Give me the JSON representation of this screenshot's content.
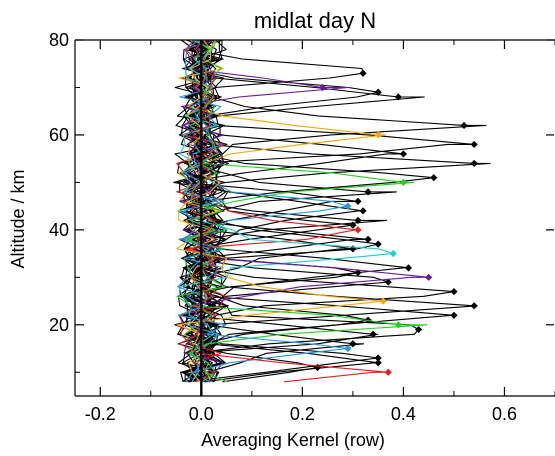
{
  "chart_data": {
    "type": "line",
    "title": "midlat day N",
    "xlabel": "Averaging Kernel (row)",
    "ylabel": "Altitude / km",
    "xlim": [
      -0.25,
      0.7
    ],
    "ylim": [
      5,
      80
    ],
    "xticks": [
      -0.2,
      0.0,
      0.2,
      0.4,
      0.6
    ],
    "xtick_labels": [
      "-0.2",
      "0.0",
      "0.2",
      "0.4",
      "0.6"
    ],
    "yticks": [
      20,
      40,
      60,
      80
    ],
    "ytick_labels": [
      "20",
      "40",
      "60",
      "80"
    ],
    "grid": false,
    "legend": "none",
    "colors": {
      "black": "#000000",
      "purple": "#6a1aa3",
      "orange": "#f5a800",
      "green": "#1fd21f",
      "blue": "#1f9be6",
      "red": "#e61e1e",
      "cyan": "#12d2d6"
    },
    "series": [
      {
        "color": "purple",
        "peak": [
          0.24,
          70.0
        ],
        "row_altitude_km": 70.0
      },
      {
        "color": "orange",
        "peak": [
          0.35,
          60.0
        ],
        "row_altitude_km": 60.0
      },
      {
        "color": "green",
        "peak": [
          0.4,
          50.0
        ],
        "row_altitude_km": 50.0
      },
      {
        "color": "blue",
        "peak": [
          0.29,
          45.0
        ],
        "row_altitude_km": 45.0
      },
      {
        "color": "red",
        "peak": [
          0.31,
          40.0
        ],
        "row_altitude_km": 40.0
      },
      {
        "color": "cyan",
        "peak": [
          0.38,
          35.0
        ],
        "row_altitude_km": 35.0
      },
      {
        "color": "purple",
        "peak": [
          0.45,
          30.0
        ],
        "row_altitude_km": 30.0
      },
      {
        "color": "orange",
        "peak": [
          0.36,
          25.0
        ],
        "row_altitude_km": 25.0
      },
      {
        "color": "green",
        "peak": [
          0.39,
          20.0
        ],
        "row_altitude_km": 20.0
      },
      {
        "color": "blue",
        "peak": [
          0.29,
          15.0
        ],
        "row_altitude_km": 15.0
      },
      {
        "color": "red",
        "peak": [
          0.37,
          10.0
        ],
        "row_altitude_km": 10.0
      },
      {
        "color": "black",
        "peak": [
          0.32,
          73.0
        ],
        "row_altitude_km": 73.0
      },
      {
        "color": "black",
        "peak": [
          0.39,
          68.0
        ],
        "row_altitude_km": 68.0
      },
      {
        "color": "black",
        "peak": [
          0.35,
          69.0
        ],
        "row_altitude_km": 69.0
      },
      {
        "color": "black",
        "peak": [
          0.52,
          62.0
        ],
        "row_altitude_km": 62.0
      },
      {
        "color": "black",
        "peak": [
          0.54,
          58.0
        ],
        "row_altitude_km": 58.0
      },
      {
        "color": "black",
        "peak": [
          0.4,
          56.0
        ],
        "row_altitude_km": 56.0
      },
      {
        "color": "black",
        "peak": [
          0.54,
          54.0
        ],
        "row_altitude_km": 54.0
      },
      {
        "color": "black",
        "peak": [
          0.46,
          51.0
        ],
        "row_altitude_km": 51.0
      },
      {
        "color": "black",
        "peak": [
          0.33,
          48.0
        ],
        "row_altitude_km": 48.0
      },
      {
        "color": "black",
        "peak": [
          0.31,
          46.0
        ],
        "row_altitude_km": 46.0
      },
      {
        "color": "black",
        "peak": [
          0.32,
          44.0
        ],
        "row_altitude_km": 44.0
      },
      {
        "color": "black",
        "peak": [
          0.31,
          42.0
        ],
        "row_altitude_km": 42.0
      },
      {
        "color": "black",
        "peak": [
          0.3,
          41.0
        ],
        "row_altitude_km": 41.0
      },
      {
        "color": "black",
        "peak": [
          0.33,
          38.0
        ],
        "row_altitude_km": 38.0
      },
      {
        "color": "black",
        "peak": [
          0.35,
          37.0
        ],
        "row_altitude_km": 37.0
      },
      {
        "color": "black",
        "peak": [
          0.3,
          36.0
        ],
        "row_altitude_km": 36.0
      },
      {
        "color": "black",
        "peak": [
          0.41,
          32.0
        ],
        "row_altitude_km": 32.0
      },
      {
        "color": "black",
        "peak": [
          0.31,
          31.0
        ],
        "row_altitude_km": 31.0
      },
      {
        "color": "black",
        "peak": [
          0.37,
          29.0
        ],
        "row_altitude_km": 29.0
      },
      {
        "color": "black",
        "peak": [
          0.5,
          27.0
        ],
        "row_altitude_km": 27.0
      },
      {
        "color": "black",
        "peak": [
          0.54,
          24.0
        ],
        "row_altitude_km": 24.0
      },
      {
        "color": "black",
        "peak": [
          0.5,
          22.0
        ],
        "row_altitude_km": 22.0
      },
      {
        "color": "black",
        "peak": [
          0.33,
          21.0
        ],
        "row_altitude_km": 21.0
      },
      {
        "color": "black",
        "peak": [
          0.43,
          19.0
        ],
        "row_altitude_km": 19.0
      },
      {
        "color": "black",
        "peak": [
          0.34,
          18.0
        ],
        "row_altitude_km": 18.0
      },
      {
        "color": "black",
        "peak": [
          0.3,
          16.0
        ],
        "row_altitude_km": 16.0
      },
      {
        "color": "black",
        "peak": [
          0.35,
          13.0
        ],
        "row_altitude_km": 13.0
      },
      {
        "color": "black",
        "peak": [
          0.35,
          12.0
        ],
        "row_altitude_km": 12.0
      },
      {
        "color": "black",
        "peak": [
          0.23,
          11.0
        ],
        "row_altitude_km": 11.0
      }
    ]
  }
}
